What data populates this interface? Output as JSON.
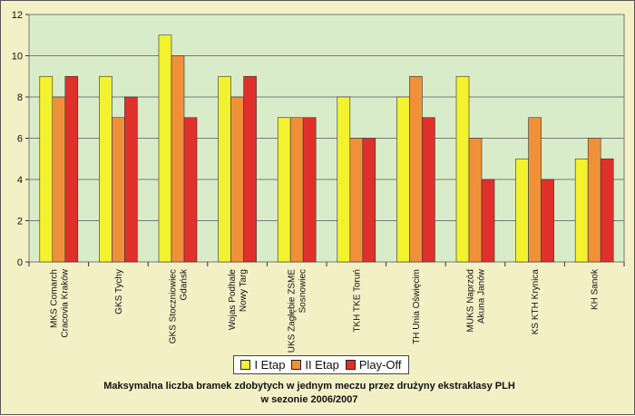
{
  "chart_data": {
    "type": "bar",
    "title_lines": [
      "Maksymalna  liczba  bramek  zdobytych  w  jednym  meczu  przez  drużyny  ekstraklasy  PLH",
      "w  sezonie  2006/2007"
    ],
    "categories": [
      [
        "MKS Comarch",
        "Cracovia Kraków"
      ],
      [
        "GKS Tychy"
      ],
      [
        "GKS Stoczniowiec",
        "Gdańsk"
      ],
      [
        "Wojas Podhale",
        "Nowy Targ"
      ],
      [
        "UKS Zagłębie ZSME",
        "Sosnowiec"
      ],
      [
        "TKH TKE Toruń"
      ],
      [
        "TH Unia Oświęcim"
      ],
      [
        "MUKS Naprzód",
        "Akuna Janów"
      ],
      [
        "KS KTH Krynica"
      ],
      [
        "KH Sanok"
      ]
    ],
    "series": [
      {
        "name": "I Etap",
        "color": "#f2f22e",
        "values": [
          9,
          9,
          11,
          9,
          7,
          8,
          8,
          9,
          5,
          5
        ]
      },
      {
        "name": "II Etap",
        "color": "#f0913a",
        "values": [
          8,
          7,
          10,
          8,
          7,
          6,
          9,
          6,
          7,
          6
        ]
      },
      {
        "name": "Play-Off",
        "color": "#e0302c",
        "values": [
          9,
          8,
          7,
          9,
          7,
          6,
          7,
          4,
          4,
          5
        ]
      }
    ],
    "ylim": [
      0,
      12
    ],
    "yticks": [
      0,
      2,
      4,
      6,
      8,
      10,
      12
    ],
    "grid": true,
    "legend_position": "bottom-center"
  },
  "colors": {
    "plot_background": "#d9ecc9",
    "page_background": "#f4f0c6",
    "gridline": "#7a7a7a"
  }
}
